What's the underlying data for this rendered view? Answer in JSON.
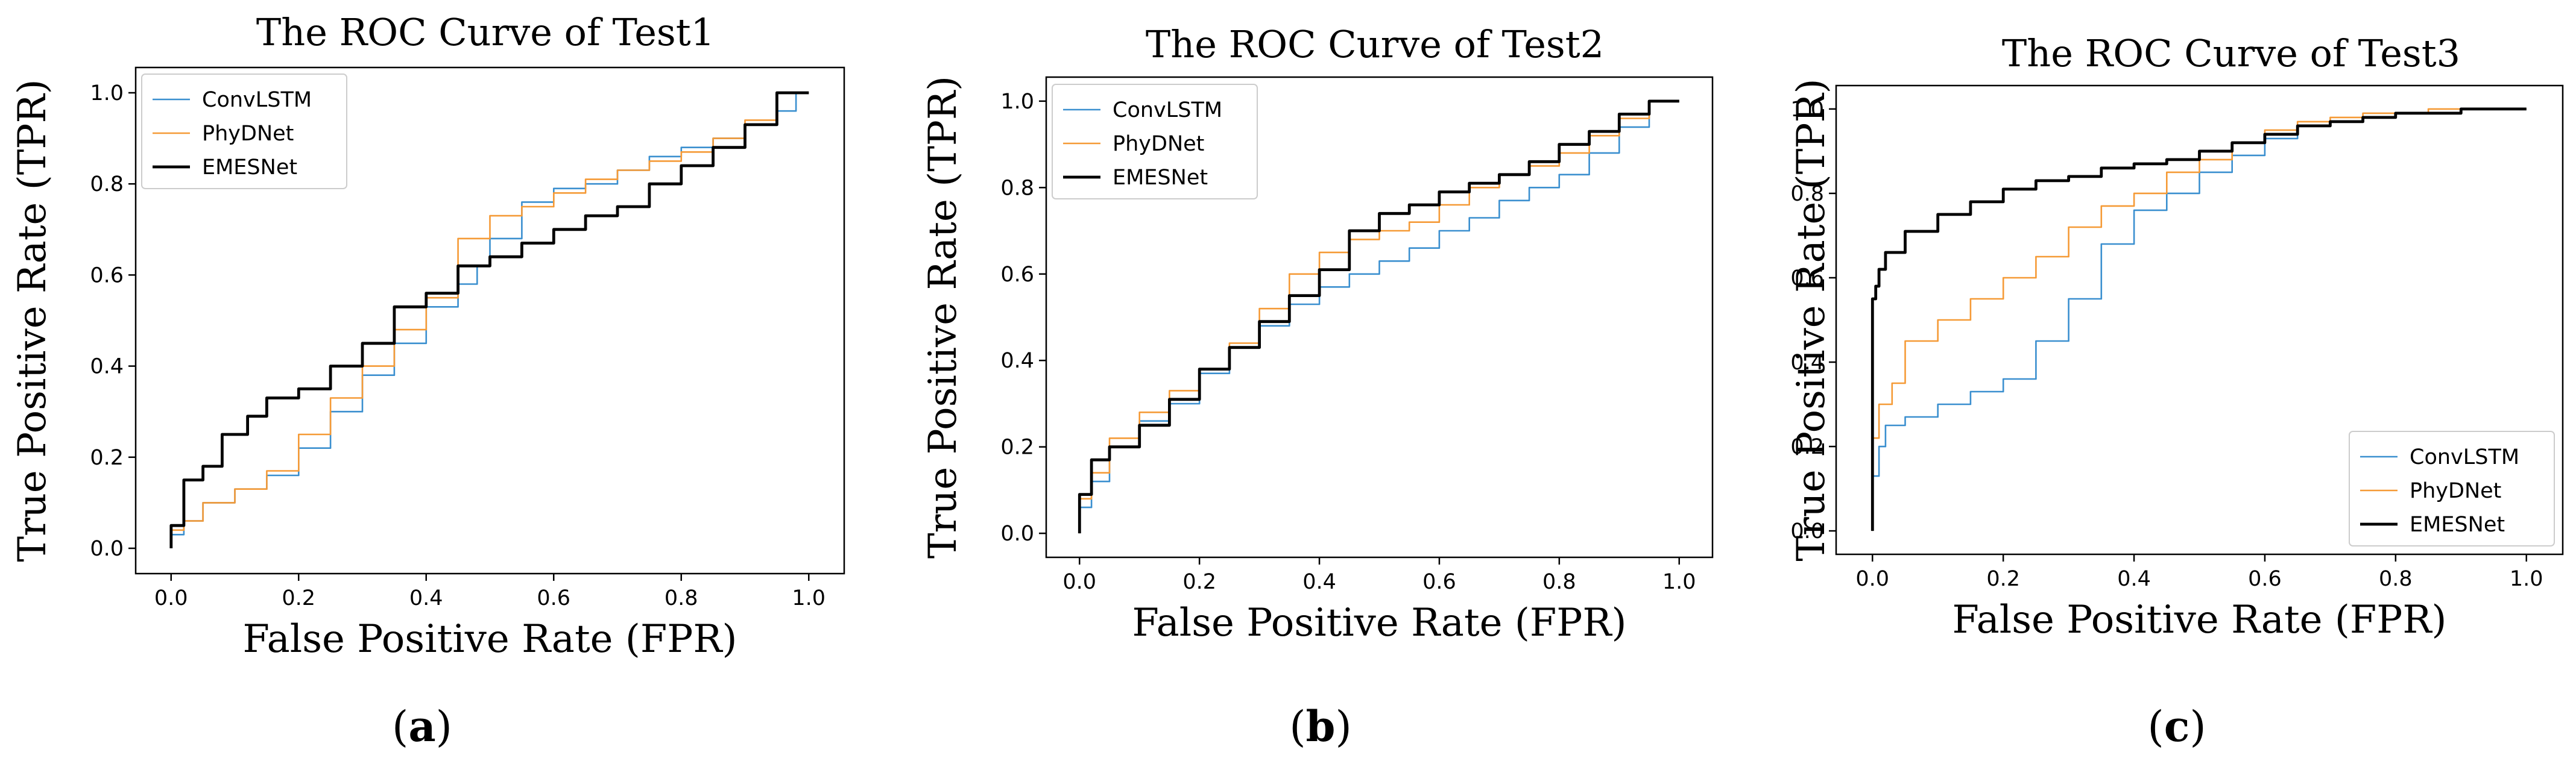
{
  "colors": {
    "ConvLSTM": "#3a8fcf",
    "PhyDNet": "#f59a36",
    "EMESNet": "#000000"
  },
  "chart_data": [
    {
      "type": "line",
      "title": "The ROC Curve of Test1",
      "xlabel": "False Positive Rate (FPR)",
      "ylabel": "True Positive Rate (TPR)",
      "caption_letter": "a",
      "xlim": [
        0,
        1
      ],
      "ylim": [
        0,
        1
      ],
      "xticks": [
        0.0,
        0.2,
        0.4,
        0.6,
        0.8,
        1.0
      ],
      "yticks": [
        0.0,
        0.2,
        0.4,
        0.6,
        0.8,
        1.0
      ],
      "tick_labels": [
        "0.0",
        "0.2",
        "0.4",
        "0.6",
        "0.8",
        "1.0"
      ],
      "legend": "upper-left",
      "series": [
        {
          "name": "ConvLSTM",
          "x": [
            0.0,
            0.02,
            0.05,
            0.1,
            0.15,
            0.2,
            0.25,
            0.3,
            0.35,
            0.4,
            0.45,
            0.48,
            0.5,
            0.55,
            0.6,
            0.65,
            0.7,
            0.75,
            0.8,
            0.85,
            0.9,
            0.95,
            0.98,
            1.0
          ],
          "y": [
            0.0,
            0.03,
            0.06,
            0.1,
            0.13,
            0.16,
            0.22,
            0.3,
            0.38,
            0.45,
            0.53,
            0.58,
            0.62,
            0.68,
            0.76,
            0.79,
            0.8,
            0.83,
            0.86,
            0.88,
            0.9,
            0.93,
            0.96,
            1.0
          ]
        },
        {
          "name": "PhyDNet",
          "x": [
            0.0,
            0.02,
            0.05,
            0.1,
            0.15,
            0.2,
            0.25,
            0.3,
            0.35,
            0.4,
            0.45,
            0.5,
            0.55,
            0.6,
            0.65,
            0.7,
            0.75,
            0.8,
            0.85,
            0.9,
            0.95,
            1.0
          ],
          "y": [
            0.0,
            0.04,
            0.06,
            0.1,
            0.13,
            0.17,
            0.25,
            0.33,
            0.4,
            0.48,
            0.55,
            0.68,
            0.73,
            0.75,
            0.78,
            0.81,
            0.83,
            0.85,
            0.87,
            0.9,
            0.94,
            1.0
          ]
        },
        {
          "name": "EMESNet",
          "x": [
            0.0,
            0.02,
            0.05,
            0.08,
            0.12,
            0.15,
            0.2,
            0.25,
            0.3,
            0.35,
            0.4,
            0.45,
            0.5,
            0.55,
            0.6,
            0.65,
            0.7,
            0.75,
            0.8,
            0.85,
            0.9,
            0.95,
            1.0
          ],
          "y": [
            0.0,
            0.05,
            0.15,
            0.18,
            0.25,
            0.29,
            0.33,
            0.35,
            0.4,
            0.45,
            0.53,
            0.56,
            0.62,
            0.64,
            0.67,
            0.7,
            0.73,
            0.75,
            0.8,
            0.84,
            0.88,
            0.93,
            1.0
          ]
        }
      ]
    },
    {
      "type": "line",
      "title": "The ROC Curve of Test2",
      "xlabel": "False Positive Rate (FPR)",
      "ylabel": "True Positive Rate (TPR)",
      "caption_letter": "b",
      "xlim": [
        0,
        1
      ],
      "ylim": [
        0,
        1
      ],
      "xticks": [
        0.0,
        0.2,
        0.4,
        0.6,
        0.8,
        1.0
      ],
      "yticks": [
        0.0,
        0.2,
        0.4,
        0.6,
        0.8,
        1.0
      ],
      "tick_labels": [
        "0.0",
        "0.2",
        "0.4",
        "0.6",
        "0.8",
        "1.0"
      ],
      "legend": "upper-left",
      "series": [
        {
          "name": "ConvLSTM",
          "x": [
            0.0,
            0.02,
            0.05,
            0.1,
            0.15,
            0.2,
            0.25,
            0.3,
            0.35,
            0.4,
            0.45,
            0.5,
            0.55,
            0.6,
            0.65,
            0.7,
            0.75,
            0.8,
            0.85,
            0.9,
            0.95,
            1.0
          ],
          "y": [
            0.0,
            0.06,
            0.12,
            0.2,
            0.26,
            0.3,
            0.37,
            0.43,
            0.48,
            0.53,
            0.57,
            0.6,
            0.63,
            0.66,
            0.7,
            0.73,
            0.77,
            0.8,
            0.83,
            0.88,
            0.94,
            1.0
          ]
        },
        {
          "name": "PhyDNet",
          "x": [
            0.0,
            0.02,
            0.05,
            0.1,
            0.15,
            0.2,
            0.25,
            0.3,
            0.35,
            0.4,
            0.45,
            0.5,
            0.55,
            0.6,
            0.65,
            0.7,
            0.75,
            0.8,
            0.85,
            0.9,
            0.95,
            1.0
          ],
          "y": [
            0.0,
            0.08,
            0.14,
            0.22,
            0.28,
            0.33,
            0.38,
            0.44,
            0.52,
            0.6,
            0.65,
            0.68,
            0.7,
            0.72,
            0.76,
            0.8,
            0.83,
            0.85,
            0.88,
            0.92,
            0.96,
            1.0
          ]
        },
        {
          "name": "EMESNet",
          "x": [
            0.0,
            0.02,
            0.05,
            0.1,
            0.15,
            0.2,
            0.25,
            0.3,
            0.35,
            0.4,
            0.45,
            0.5,
            0.55,
            0.6,
            0.65,
            0.7,
            0.75,
            0.8,
            0.85,
            0.9,
            0.95,
            1.0
          ],
          "y": [
            0.0,
            0.09,
            0.17,
            0.2,
            0.25,
            0.31,
            0.38,
            0.43,
            0.49,
            0.55,
            0.61,
            0.7,
            0.74,
            0.76,
            0.79,
            0.81,
            0.83,
            0.86,
            0.9,
            0.93,
            0.97,
            1.0
          ]
        }
      ]
    },
    {
      "type": "line",
      "title": "The ROC Curve of Test3",
      "xlabel": "False Positive Rate (FPR)",
      "ylabel": "True Positive Rate (TPR)",
      "caption_letter": "c",
      "xlim": [
        0,
        1
      ],
      "ylim": [
        0,
        1
      ],
      "xticks": [
        0.0,
        0.2,
        0.4,
        0.6,
        0.8,
        1.0
      ],
      "yticks": [
        0.0,
        0.2,
        0.4,
        0.6,
        0.8,
        1.0
      ],
      "tick_labels": [
        "0.0",
        "0.2",
        "0.4",
        "0.6",
        "0.8",
        "1.0"
      ],
      "legend": "lower-right",
      "series": [
        {
          "name": "ConvLSTM",
          "x": [
            0.0,
            0.01,
            0.02,
            0.05,
            0.1,
            0.15,
            0.2,
            0.25,
            0.3,
            0.35,
            0.4,
            0.45,
            0.5,
            0.55,
            0.6,
            0.65,
            0.7,
            0.75,
            0.8,
            0.85,
            0.9,
            0.95,
            1.0
          ],
          "y": [
            0.0,
            0.13,
            0.2,
            0.25,
            0.27,
            0.3,
            0.33,
            0.36,
            0.45,
            0.55,
            0.68,
            0.76,
            0.8,
            0.85,
            0.89,
            0.93,
            0.96,
            0.97,
            0.98,
            0.99,
            0.99,
            1.0,
            1.0
          ]
        },
        {
          "name": "PhyDNet",
          "x": [
            0.0,
            0.01,
            0.03,
            0.05,
            0.1,
            0.15,
            0.2,
            0.25,
            0.3,
            0.35,
            0.4,
            0.45,
            0.5,
            0.55,
            0.6,
            0.65,
            0.7,
            0.75,
            0.8,
            0.85,
            0.9,
            0.95,
            1.0
          ],
          "y": [
            0.0,
            0.22,
            0.3,
            0.35,
            0.45,
            0.5,
            0.55,
            0.6,
            0.65,
            0.72,
            0.77,
            0.8,
            0.85,
            0.88,
            0.92,
            0.95,
            0.97,
            0.98,
            0.99,
            0.99,
            1.0,
            1.0,
            1.0
          ]
        },
        {
          "name": "EMESNet",
          "x": [
            0.0,
            0.005,
            0.01,
            0.02,
            0.05,
            0.1,
            0.15,
            0.2,
            0.25,
            0.3,
            0.35,
            0.4,
            0.45,
            0.5,
            0.55,
            0.6,
            0.65,
            0.7,
            0.75,
            0.8,
            0.85,
            0.9,
            0.95,
            1.0
          ],
          "y": [
            0.0,
            0.55,
            0.58,
            0.62,
            0.66,
            0.71,
            0.75,
            0.78,
            0.81,
            0.83,
            0.84,
            0.86,
            0.87,
            0.88,
            0.9,
            0.92,
            0.94,
            0.96,
            0.97,
            0.98,
            0.99,
            0.99,
            1.0,
            1.0
          ]
        }
      ]
    }
  ]
}
